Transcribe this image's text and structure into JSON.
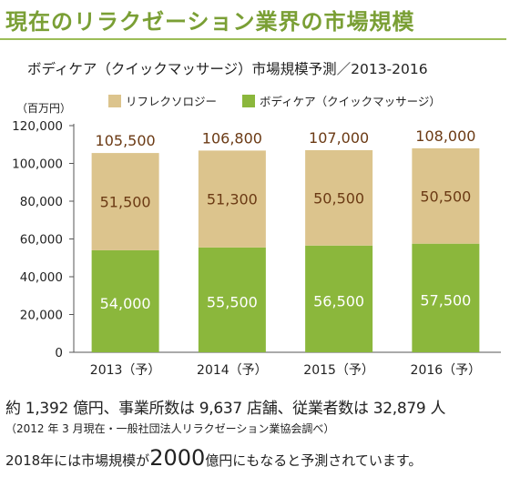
{
  "page_title": "現在のリラクゼーション業界の市場規模",
  "chart_data": {
    "type": "bar",
    "stacked": true,
    "title": "ボディケア（クイックマッサージ）市場規模予測／2013-2016",
    "unit_label": "（百万円）",
    "categories": [
      "2013（予）",
      "2014（予）",
      "2015（予）",
      "2016（予）"
    ],
    "series": [
      {
        "name": "ボディケア（クイックマッサージ）",
        "color": "#8bb73c",
        "values": [
          54000,
          55500,
          56500,
          57500
        ],
        "labels": [
          "54,000",
          "55,500",
          "56,500",
          "57,500"
        ]
      },
      {
        "name": "リフレクソロジー",
        "color": "#dcc48d",
        "values": [
          51500,
          51300,
          50500,
          50500
        ],
        "labels": [
          "51,500",
          "51,300",
          "50,500",
          "50,500"
        ]
      }
    ],
    "totals": [
      105500,
      106800,
      107000,
      108000
    ],
    "total_labels": [
      "105,500",
      "106,800",
      "107,000",
      "108,000"
    ],
    "ylim": [
      0,
      120000
    ],
    "yticks": [
      0,
      20000,
      40000,
      60000,
      80000,
      100000,
      120000
    ],
    "ytick_labels": [
      "0",
      "20,000",
      "40,000",
      "60,000",
      "80,000",
      "100,000",
      "120,000"
    ],
    "legend_position": "top",
    "grid": false,
    "total_label_color": "#6b3a14",
    "reflex_label_color": "#6b3a14",
    "body_label_color": "#ffffff"
  },
  "legend": {
    "reflexology": "リフレクソロジー",
    "bodycare": "ボディケア（クイックマッサージ）"
  },
  "summary": "約 1,392 億円、事業所数は 9,637 店舗、従業者数は 32,879 人",
  "note": "（2012 年 3 月現在・一般社団法人リラクゼーション業協会調べ）",
  "forecast": {
    "before": "2018年には市場規模が",
    "value": "2000",
    "after": "億円にもなると予測されています。"
  }
}
